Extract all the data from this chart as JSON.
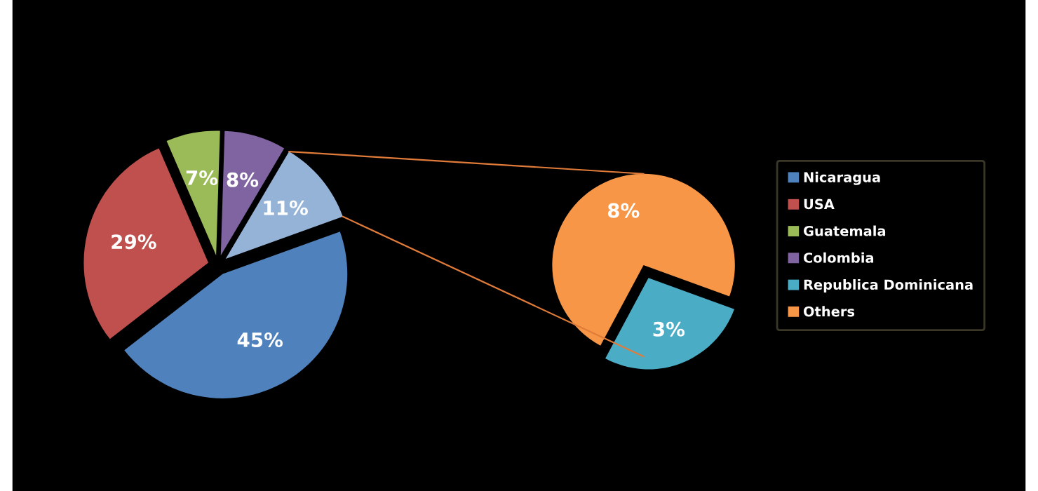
{
  "chart_data": [
    {
      "type": "pie",
      "categories": [
        "Nicaragua",
        "USA",
        "Guatemala",
        "Colombia",
        null
      ],
      "values": [
        45,
        29,
        7,
        8,
        11
      ],
      "colors": [
        "#4f81bd",
        "#c0504d",
        "#9bbb59",
        "#8064a2",
        "#95b3d7"
      ],
      "value_labels": [
        "45%",
        "29%",
        "7%",
        "8%",
        "11%"
      ],
      "legend": "right"
    },
    {
      "type": "pie",
      "categories": [
        "Republica Dominicana",
        "Others"
      ],
      "values": [
        3,
        8
      ],
      "colors": [
        "#4bacc6",
        "#f79646"
      ],
      "value_labels": [
        "3%",
        "8%"
      ],
      "legend": "right"
    }
  ]
}
